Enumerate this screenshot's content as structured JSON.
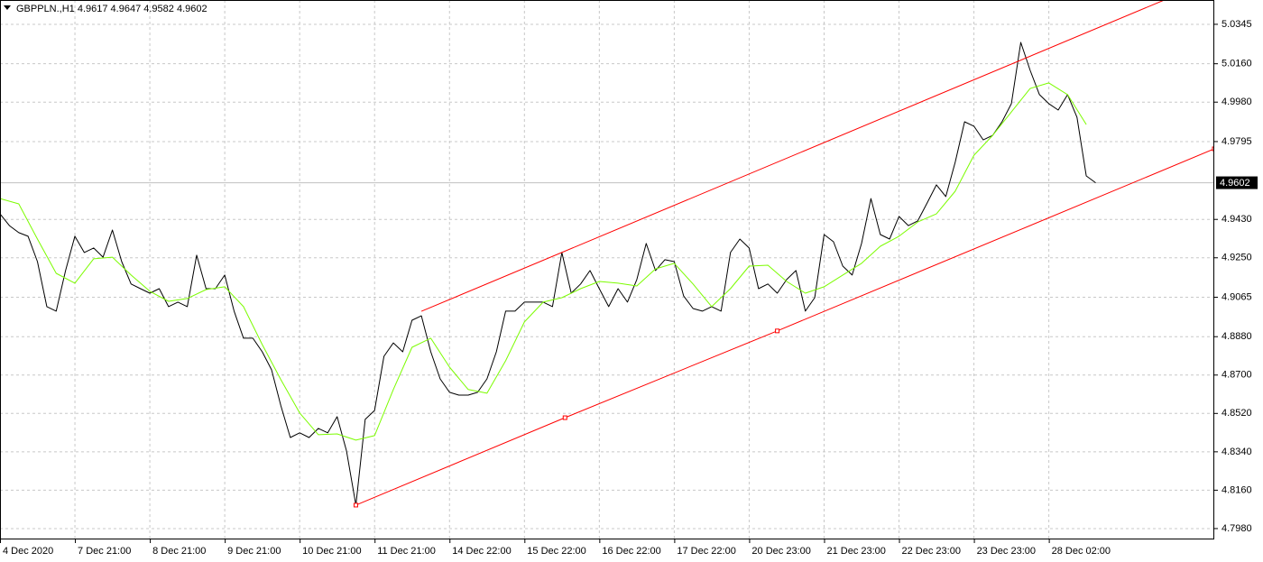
{
  "chart_data": {
    "type": "line",
    "title": "GBPPLN.,H1  4.9617 4.9647 4.9582 4.9602",
    "current_price": 4.9602,
    "xlim": [
      0,
      389
    ],
    "ylim": [
      4.7929,
      5.0459
    ],
    "grid": true,
    "xticks": [
      {
        "value": 0,
        "label": "4 Dec 2020"
      },
      {
        "value": 24,
        "label": "7 Dec 21:00"
      },
      {
        "value": 48,
        "label": "8 Dec 21:00"
      },
      {
        "value": 72,
        "label": "9 Dec 21:00"
      },
      {
        "value": 96,
        "label": "10 Dec 21:00"
      },
      {
        "value": 120,
        "label": "11 Dec 21:00"
      },
      {
        "value": 144,
        "label": "14 Dec 22:00"
      },
      {
        "value": 168,
        "label": "15 Dec 22:00"
      },
      {
        "value": 192,
        "label": "16 Dec 22:00"
      },
      {
        "value": 216,
        "label": "17 Dec 22:00"
      },
      {
        "value": 240,
        "label": "20 Dec 23:00"
      },
      {
        "value": 264,
        "label": "21 Dec 23:00"
      },
      {
        "value": 288,
        "label": "22 Dec 23:00"
      },
      {
        "value": 312,
        "label": "23 Dec 23:00"
      },
      {
        "value": 336,
        "label": "28 Dec 02:00"
      }
    ],
    "yticks": [
      5.0345,
      {
        "value": 5.016,
        "label": "5.0160"
      },
      {
        "value": 4.998,
        "label": "4.9980"
      },
      4.9795,
      {
        "value": 4.943,
        "label": "4.9430"
      },
      {
        "value": 4.925,
        "label": "4.9250"
      },
      4.9065,
      {
        "value": 4.888,
        "label": "4.8880"
      },
      {
        "value": 4.87,
        "label": "4.8700"
      },
      {
        "value": 4.852,
        "label": "4.8520"
      },
      {
        "value": 4.834,
        "label": "4.8340"
      },
      {
        "value": 4.816,
        "label": "4.8160"
      },
      {
        "value": 4.798,
        "label": "4.7980"
      }
    ],
    "series": [
      {
        "color": "#000000",
        "width": 1,
        "x": [
          0,
          3,
          6,
          9,
          12,
          15,
          18,
          21,
          24,
          27,
          30,
          33,
          36,
          39,
          42,
          45,
          48,
          51,
          54,
          57,
          60,
          63,
          66,
          69,
          72,
          75,
          78,
          81,
          84,
          87,
          90,
          93,
          96,
          99,
          102,
          105,
          108,
          111,
          114,
          117,
          120,
          123,
          126,
          129,
          132,
          135,
          138,
          141,
          144,
          147,
          150,
          153,
          156,
          159,
          162,
          165,
          168,
          171,
          174,
          177,
          180,
          183,
          186,
          189,
          192,
          195,
          198,
          201,
          204,
          207,
          210,
          213,
          216,
          219,
          222,
          225,
          228,
          231,
          234,
          237,
          240,
          243,
          246,
          249,
          252,
          255,
          258,
          261,
          264,
          267,
          270,
          273,
          276,
          279,
          282,
          285,
          288,
          291,
          294,
          297,
          300,
          303,
          306,
          309,
          312,
          315,
          318,
          321,
          324,
          327,
          330,
          333,
          336,
          339,
          342,
          345,
          348,
          351
        ],
        "values": [
          4.9456,
          4.9401,
          4.9368,
          4.9351,
          4.9232,
          4.9021,
          4.9,
          4.919,
          4.9351,
          4.9275,
          4.9296,
          4.9253,
          4.938,
          4.9232,
          4.9127,
          4.9105,
          4.9084,
          4.9105,
          4.9021,
          4.9042,
          4.9021,
          4.9262,
          4.9105,
          4.9105,
          4.9169,
          4.9,
          4.8873,
          4.8873,
          4.8809,
          4.8725,
          4.8555,
          4.8407,
          4.8429,
          4.8407,
          4.845,
          4.8429,
          4.8505,
          4.8344,
          4.809,
          4.8492,
          4.8534,
          4.8788,
          4.8851,
          4.8809,
          4.8957,
          4.8978,
          4.8809,
          4.8682,
          4.8619,
          4.8606,
          4.8606,
          4.8619,
          4.8682,
          4.8809,
          4.9,
          4.9,
          4.9042,
          4.9042,
          4.9042,
          4.9021,
          4.9275,
          4.9084,
          4.9127,
          4.919,
          4.9105,
          4.9021,
          4.9105,
          4.9042,
          4.9148,
          4.9317,
          4.919,
          4.9241,
          4.9232,
          4.9071,
          4.9012,
          4.9,
          4.9021,
          4.9,
          4.9275,
          4.9338,
          4.9296,
          4.9105,
          4.9127,
          4.9084,
          4.9148,
          4.919,
          4.9,
          4.9063,
          4.9359,
          4.9325,
          4.9211,
          4.9169,
          4.9317,
          4.9528,
          4.9359,
          4.9338,
          4.9444,
          4.9401,
          4.9423,
          4.9507,
          4.9592,
          4.9537,
          4.9698,
          4.9888,
          4.9867,
          4.9803,
          4.9824,
          4.9888,
          4.9973,
          5.026,
          5.0129,
          5.0015,
          4.9973,
          4.9943,
          5.0015,
          4.9909,
          4.9634,
          4.9602
        ]
      },
      {
        "color": "#7cfc00",
        "width": 1,
        "x": [
          0,
          6,
          12,
          18,
          24,
          30,
          36,
          42,
          48,
          54,
          60,
          66,
          72,
          78,
          84,
          90,
          96,
          102,
          108,
          114,
          120,
          126,
          132,
          138,
          144,
          150,
          156,
          162,
          168,
          174,
          180,
          186,
          192,
          198,
          204,
          210,
          216,
          222,
          228,
          234,
          240,
          246,
          252,
          258,
          264,
          270,
          276,
          282,
          288,
          294,
          300,
          306,
          312,
          318,
          324,
          330,
          336,
          342,
          348
        ],
        "values": [
          4.9528,
          4.9503,
          4.9338,
          4.9177,
          4.9131,
          4.9245,
          4.9253,
          4.9169,
          4.9093,
          4.9046,
          4.9059,
          4.9101,
          4.9114,
          4.9021,
          4.8843,
          4.8678,
          4.8522,
          4.842,
          4.8424,
          4.8395,
          4.8416,
          4.8632,
          4.883,
          4.8873,
          4.8737,
          4.8632,
          4.8615,
          4.8767,
          4.8949,
          4.9042,
          4.9063,
          4.9105,
          4.9139,
          4.9131,
          4.9118,
          4.9198,
          4.9224,
          4.9127,
          4.9021,
          4.9105,
          4.9211,
          4.9215,
          4.9139,
          4.9084,
          4.9114,
          4.9169,
          4.9224,
          4.9304,
          4.9351,
          4.9418,
          4.9456,
          4.9562,
          4.9731,
          4.9824,
          4.9934,
          5.0044,
          5.007,
          5.0015,
          4.9875
        ]
      },
      {
        "color": "#ff0000",
        "width": 1,
        "x": [
          135,
          373
        ],
        "values": [
          4.8999,
          5.0459
        ]
      },
      {
        "color": "#ff0000",
        "width": 1,
        "markers": true,
        "x": [
          114,
          181,
          249,
          389
        ],
        "values": [
          4.809,
          4.85,
          4.8907,
          4.9761
        ]
      }
    ]
  }
}
